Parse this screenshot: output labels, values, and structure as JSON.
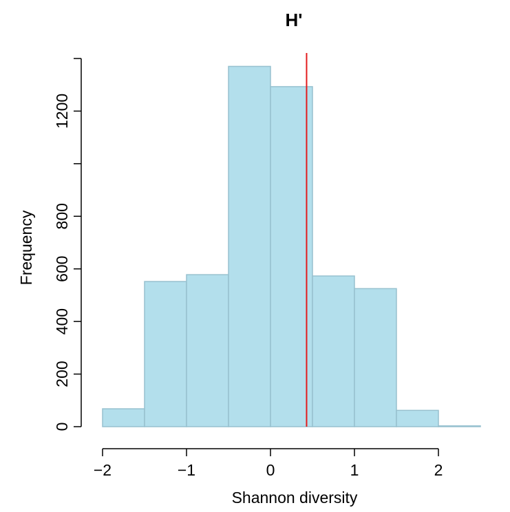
{
  "chart_data": {
    "type": "bar",
    "title": "H'",
    "xlabel": "Shannon diversity",
    "ylabel": "Frequency",
    "bins": [
      {
        "start": -2.0,
        "end": -1.5,
        "count": 68
      },
      {
        "start": -1.5,
        "end": -1.0,
        "count": 552
      },
      {
        "start": -1.0,
        "end": -0.5,
        "count": 578
      },
      {
        "start": -0.5,
        "end": 0.0,
        "count": 1370
      },
      {
        "start": 0.0,
        "end": 0.5,
        "count": 1293
      },
      {
        "start": 0.5,
        "end": 1.0,
        "count": 573
      },
      {
        "start": 1.0,
        "end": 1.5,
        "count": 525
      },
      {
        "start": 1.5,
        "end": 2.0,
        "count": 62
      },
      {
        "start": 2.0,
        "end": 2.5,
        "count": 3
      }
    ],
    "xlim": [
      -2.0,
      2.5
    ],
    "ylim": [
      0,
      1400
    ],
    "x_ticks": [
      -2,
      -1,
      0,
      1,
      2
    ],
    "x_tick_labels": [
      "−2",
      "−1",
      "0",
      "1",
      "2"
    ],
    "y_ticks": [
      0,
      200,
      400,
      600,
      800,
      1000,
      1200,
      1400
    ],
    "y_tick_labels": [
      "0",
      "200",
      "400",
      "600",
      "800",
      "",
      "1200",
      ""
    ],
    "reference_line": {
      "x": 0.43
    },
    "grid": false,
    "colors": {
      "bar_fill": "#b3dfec",
      "bar_stroke": "#97c1cf",
      "reference_line": "#e31a1c",
      "axis": "#000000"
    }
  }
}
